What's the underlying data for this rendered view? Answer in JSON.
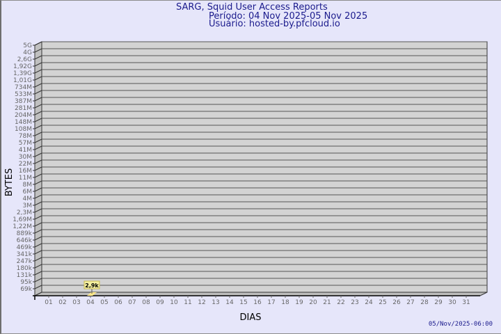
{
  "colors": {
    "background": "#e6e6fa",
    "wall": "#d3d3d3",
    "side_wall": "#c0c0c0",
    "grid": "#555555",
    "bar": "#ffe88a",
    "label_box": "#f5f0a0",
    "title": "#1a1a8c",
    "tick_text": "#666666"
  },
  "header": {
    "title": "SARG, Squid User Access Reports",
    "period": "Período: 04 Nov 2025-05 Nov 2025",
    "user": "Usuário: hosted-by.pfcloud.io"
  },
  "footer": {
    "timestamp": "05/Nov/2025-06:00"
  },
  "chart_data": {
    "type": "bar",
    "title": "SARG, Squid User Access Reports",
    "xlabel": "DIAS",
    "ylabel": "BYTES",
    "yscale": "log",
    "grid": true,
    "three_d": true,
    "y_tick_labels": [
      "5G",
      "4G",
      "2,6G",
      "1,92G",
      "1,39G",
      "1,01G",
      "734M",
      "533M",
      "387M",
      "281M",
      "204M",
      "148M",
      "108M",
      "78M",
      "57M",
      "41M",
      "30M",
      "22M",
      "16M",
      "11M",
      "8M",
      "6M",
      "4M",
      "3M",
      "2,3M",
      "1,69M",
      "1,22M",
      "889k",
      "646k",
      "469k",
      "341k",
      "247k",
      "180k",
      "131k",
      "95k",
      "69k"
    ],
    "categories": [
      "01",
      "02",
      "03",
      "04",
      "05",
      "06",
      "07",
      "08",
      "09",
      "10",
      "11",
      "12",
      "13",
      "14",
      "15",
      "16",
      "17",
      "18",
      "19",
      "20",
      "21",
      "22",
      "23",
      "24",
      "25",
      "26",
      "27",
      "28",
      "29",
      "30",
      "31"
    ],
    "values": [
      0,
      0,
      0,
      2900,
      0,
      0,
      0,
      0,
      0,
      0,
      0,
      0,
      0,
      0,
      0,
      0,
      0,
      0,
      0,
      0,
      0,
      0,
      0,
      0,
      0,
      0,
      0,
      0,
      0,
      0,
      0
    ],
    "data_labels": [
      {
        "category": "04",
        "text": "2,9k"
      }
    ]
  }
}
